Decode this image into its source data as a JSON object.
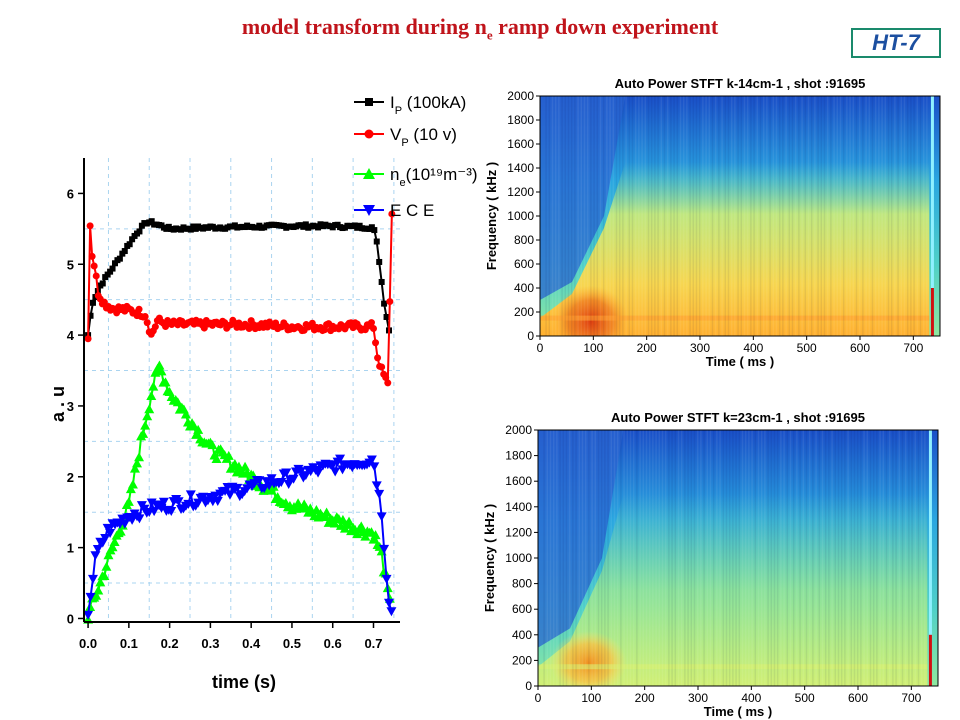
{
  "page": {
    "title_prefix": "model transform during  n",
    "title_sub": "e",
    "title_suffix": " ramp down experiment",
    "badge": "HT-7"
  },
  "chart_data": [
    {
      "type": "line",
      "xlabel": "time  (s)",
      "ylabel": "a . u",
      "xlim": [
        -0.01,
        0.765
      ],
      "ylim": [
        -0.05,
        6.5
      ],
      "x_ticks": [
        "0.0",
        "0.1",
        "0.2",
        "0.3",
        "0.4",
        "0.5",
        "0.6",
        "0.7"
      ],
      "y_ticks": [
        "0",
        "1",
        "2",
        "3",
        "4",
        "5",
        "6"
      ],
      "grid": true,
      "legend_position": "top-right",
      "series": [
        {
          "name": "I",
          "name_sub": "P",
          "name_rest": " (100kA)",
          "color": "#000000",
          "marker": "square",
          "x": [
            0.0,
            0.01,
            0.03,
            0.06,
            0.09,
            0.12,
            0.145,
            0.16,
            0.2,
            0.3,
            0.4,
            0.5,
            0.6,
            0.7,
            0.71,
            0.725,
            0.74
          ],
          "y": [
            4.0,
            4.45,
            4.7,
            4.95,
            5.2,
            5.45,
            5.6,
            5.58,
            5.5,
            5.52,
            5.53,
            5.54,
            5.54,
            5.52,
            5.25,
            4.5,
            4.0
          ]
        },
        {
          "name": "V",
          "name_sub": "P",
          "name_rest": " (10 v)",
          "color": "#ff0000",
          "marker": "circle",
          "x": [
            0.0,
            0.003,
            0.008,
            0.015,
            0.025,
            0.04,
            0.06,
            0.1,
            0.14,
            0.155,
            0.17,
            0.2,
            0.3,
            0.4,
            0.5,
            0.6,
            0.7,
            0.71,
            0.72,
            0.735,
            0.745
          ],
          "y": [
            4.0,
            5.8,
            5.2,
            5.0,
            4.6,
            4.45,
            4.38,
            4.35,
            4.3,
            4.0,
            4.2,
            4.15,
            4.15,
            4.15,
            4.12,
            4.12,
            4.12,
            3.7,
            3.5,
            3.3,
            5.7
          ]
        },
        {
          "name": "n",
          "name_sub": "e",
          "name_rest": "(10¹⁹m⁻³)",
          "color": "#00ff00",
          "marker": "triangle-up",
          "x": [
            0.0,
            0.03,
            0.06,
            0.1,
            0.13,
            0.16,
            0.175,
            0.2,
            0.25,
            0.3,
            0.4,
            0.5,
            0.6,
            0.7,
            0.72,
            0.74
          ],
          "y": [
            0.05,
            0.5,
            1.0,
            1.6,
            2.5,
            3.3,
            3.55,
            3.2,
            2.8,
            2.4,
            2.0,
            1.6,
            1.4,
            1.2,
            0.9,
            0.2
          ]
        },
        {
          "name": "E C E",
          "color": "#0000ff",
          "marker": "triangle-down",
          "x": [
            0.0,
            0.02,
            0.05,
            0.1,
            0.15,
            0.2,
            0.3,
            0.4,
            0.5,
            0.6,
            0.65,
            0.7,
            0.72,
            0.735,
            0.745
          ],
          "y": [
            0.1,
            0.9,
            1.25,
            1.45,
            1.55,
            1.6,
            1.72,
            1.85,
            2.0,
            2.15,
            2.2,
            2.25,
            1.5,
            0.4,
            0.05
          ]
        }
      ]
    },
    {
      "type": "heatmap",
      "title": "Auto Power STFT  k-14cm-1  ,  shot :91695",
      "xlabel": "Time  ( ms )",
      "ylabel": "Frequency  ( kHz )",
      "xlim": [
        0,
        750
      ],
      "ylim": [
        0,
        2000
      ],
      "x_ticks": [
        "0",
        "100",
        "200",
        "300",
        "400",
        "500",
        "600",
        "700"
      ],
      "y_ticks": [
        "0",
        "200",
        "400",
        "600",
        "800",
        "1000",
        "1200",
        "1400",
        "1600",
        "1800",
        "2000"
      ]
    },
    {
      "type": "heatmap",
      "title": "Auto Power STFT k=23cm-1  ,  shot :91695",
      "xlabel": "Time  ( ms )",
      "ylabel": "Frequency  ( kHz )",
      "xlim": [
        0,
        750
      ],
      "ylim": [
        0,
        2000
      ],
      "x_ticks": [
        "0",
        "100",
        "200",
        "300",
        "400",
        "500",
        "600",
        "700"
      ],
      "y_ticks": [
        "0",
        "200",
        "400",
        "600",
        "800",
        "1000",
        "1200",
        "1400",
        "1600",
        "1800",
        "2000"
      ]
    }
  ]
}
